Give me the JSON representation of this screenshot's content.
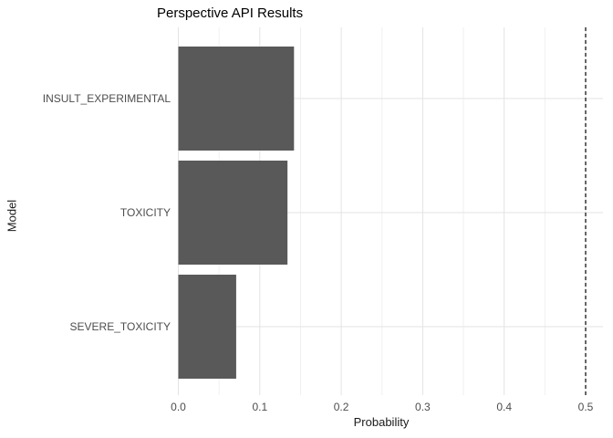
{
  "chart_data": {
    "type": "bar",
    "orientation": "horizontal",
    "title": "Perspective API Results",
    "xlabel": "Probability",
    "ylabel": "Model",
    "categories": [
      "INSULT_EXPERIMENTAL",
      "TOXICITY",
      "SEVERE_TOXICITY"
    ],
    "values": [
      0.142,
      0.134,
      0.071
    ],
    "xlim": [
      0,
      0.5
    ],
    "x_ticks": [
      "0.0",
      "0.1",
      "0.2",
      "0.3",
      "0.4",
      "0.5"
    ],
    "x_minor_step": 0.05,
    "grid": true,
    "legend": "none",
    "bar_color": "#595959",
    "background_color": "#ffffff",
    "major_grid_color": "#e3e3e3",
    "minor_grid_color": "#f0f0f0",
    "tick_label_color": "#4d4d4d",
    "reference_line": {
      "x": 0.5,
      "style": "dashed",
      "color": "#000000"
    }
  }
}
